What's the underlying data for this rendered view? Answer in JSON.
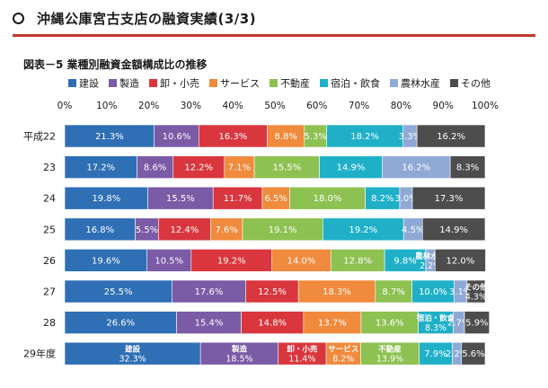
{
  "header": {
    "title": "沖縄公庫宮古支店の融資実績(3/3)"
  },
  "chart_data": {
    "type": "bar",
    "orientation": "horizontal",
    "stacked": true,
    "title": "図表－5 業種別融資金額構成比の推移",
    "xlim": [
      0,
      100
    ],
    "x_ticks": [
      "0%",
      "10%",
      "20%",
      "30%",
      "40%",
      "50%",
      "60%",
      "70%",
      "80%",
      "90%",
      "100%"
    ],
    "legend_position": "top",
    "categories": [
      "平成22",
      "23",
      "24",
      "25",
      "26",
      "27",
      "28",
      "29年度"
    ],
    "series": [
      {
        "name": "建設",
        "color": "#2f6fb5",
        "values": [
          21.3,
          17.2,
          19.8,
          16.8,
          19.6,
          25.5,
          26.6,
          32.3
        ]
      },
      {
        "name": "製造",
        "color": "#7b5aa6",
        "values": [
          10.6,
          8.6,
          15.5,
          5.5,
          10.5,
          17.6,
          15.4,
          18.5
        ]
      },
      {
        "name": "卸・小売",
        "color": "#d9363e",
        "values": [
          16.3,
          12.2,
          11.7,
          12.4,
          19.2,
          12.5,
          14.8,
          11.4
        ]
      },
      {
        "name": "サービス",
        "color": "#f08a3c",
        "values": [
          8.8,
          7.1,
          6.5,
          7.6,
          14.0,
          18.3,
          13.7,
          8.2
        ]
      },
      {
        "name": "不動産",
        "color": "#8dc152",
        "values": [
          5.3,
          15.5,
          18.0,
          19.1,
          12.8,
          8.7,
          13.6,
          13.9
        ]
      },
      {
        "name": "宿泊・飲食",
        "color": "#1fb0c8",
        "values": [
          18.2,
          14.9,
          8.2,
          19.2,
          9.8,
          10.0,
          8.3,
          7.9
        ]
      },
      {
        "name": "農林水産",
        "color": "#8fa9d6",
        "values": [
          3.3,
          16.2,
          3.0,
          4.5,
          2.2,
          3.1,
          2.7,
          2.2
        ]
      },
      {
        "name": "その他",
        "color": "#4d4d4d",
        "values": [
          16.2,
          8.3,
          17.3,
          14.9,
          12.0,
          4.3,
          5.9,
          5.6
        ]
      }
    ],
    "inline_label_years": {
      "26": [
        "農林水産"
      ],
      "27": [
        "その他"
      ],
      "28": [
        "宿泊・飲食"
      ],
      "29年度": [
        "建設",
        "製造",
        "卸・小売",
        "サービス",
        "不動産"
      ]
    }
  }
}
